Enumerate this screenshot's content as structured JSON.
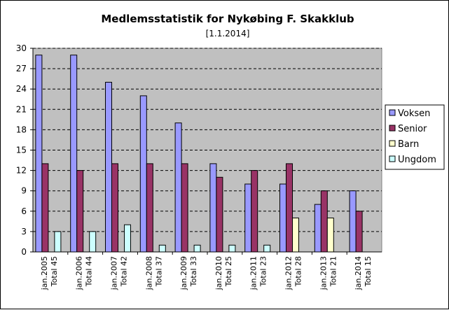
{
  "chart_data": {
    "type": "bar",
    "title": "Medlemsstatistik for Nykøbing F. Skakklub",
    "subtitle": "[1.1.2014]",
    "xlabel": "",
    "ylabel": "",
    "ylim": [
      0,
      30
    ],
    "yticks": [
      0,
      3,
      6,
      9,
      12,
      15,
      18,
      21,
      24,
      27,
      30
    ],
    "grid": true,
    "legend_position": "right",
    "plot_background": "#c0c0c0",
    "categories": [
      [
        "jan.2005",
        "Total 45"
      ],
      [
        "jan.2006",
        "Total 44"
      ],
      [
        "jan.2007",
        "Total 42"
      ],
      [
        "jan.2008",
        "Total 37"
      ],
      [
        "jan.2009",
        "Total 33"
      ],
      [
        "jan.2010",
        "Total 25"
      ],
      [
        "jan.2011",
        "Total 23"
      ],
      [
        "jan.2012",
        "Total 28"
      ],
      [
        "jan.2013",
        "Total 21"
      ],
      [
        "jan.2014",
        "Total 15"
      ]
    ],
    "series": [
      {
        "name": "Voksen",
        "color": "#9999ff",
        "values": [
          29,
          29,
          25,
          23,
          19,
          13,
          10,
          10,
          7,
          9
        ]
      },
      {
        "name": "Senior",
        "color": "#993366",
        "values": [
          13,
          12,
          13,
          13,
          13,
          11,
          12,
          13,
          9,
          6
        ]
      },
      {
        "name": "Barn",
        "color": "#ffffcc",
        "values": [
          0,
          0,
          0,
          0,
          0,
          0,
          0,
          5,
          5,
          0
        ]
      },
      {
        "name": "Ungdom",
        "color": "#ccffff",
        "values": [
          3,
          3,
          4,
          1,
          1,
          1,
          1,
          0,
          0,
          0
        ]
      }
    ]
  }
}
